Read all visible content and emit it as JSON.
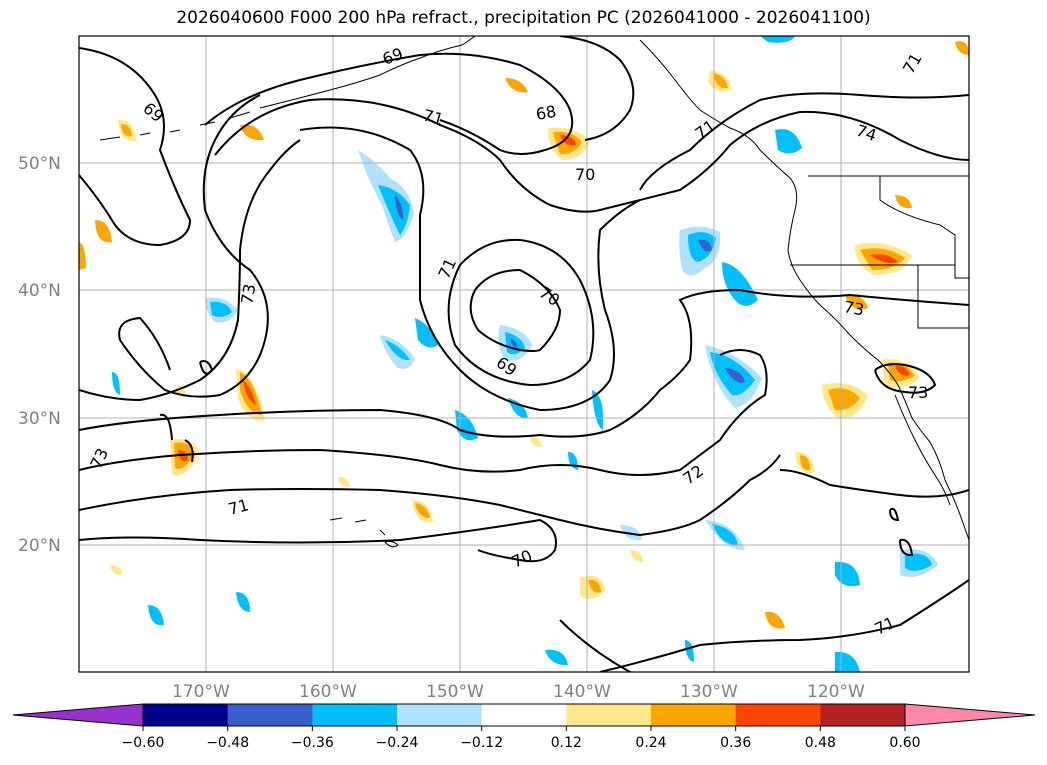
{
  "title": "2026040600 F000 200 hPa refract., precipitation PC (2026041000 - 2026041100)",
  "map": {
    "lat_labels": [
      "50°N",
      "40°N",
      "30°N",
      "20°N"
    ],
    "lon_labels": [
      "170°W",
      "160°W",
      "150°W",
      "140°W",
      "130°W",
      "120°W"
    ],
    "contour_labels": [
      "69",
      "69",
      "68",
      "70",
      "71",
      "71",
      "74",
      "71",
      "73",
      "70",
      "69",
      "71",
      "73",
      "73",
      "72",
      "71",
      "70",
      "71",
      "73"
    ],
    "grid": true
  },
  "colorbar": {
    "ticks": [
      "−0.60",
      "−0.48",
      "−0.36",
      "−0.24",
      "−0.12",
      "0.12",
      "0.24",
      "0.36",
      "0.48",
      "0.60"
    ],
    "colors": [
      "#9932cc",
      "#00008b",
      "#3a5fcd",
      "#00bfff",
      "#b0e2ff",
      "#ffffff",
      "#ffe88c",
      "#ffa500",
      "#ff4500",
      "#b22222",
      "#ff88aa"
    ]
  }
}
